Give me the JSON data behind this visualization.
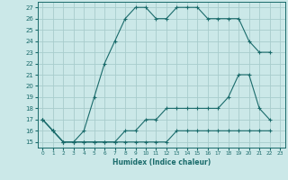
{
  "title": "",
  "xlabel": "Humidex (Indice chaleur)",
  "bg_color": "#cbe8e8",
  "grid_color": "#a8cccc",
  "line_color": "#1a6b6b",
  "spine_color": "#1a6b6b",
  "xlim": [
    -0.5,
    23.5
  ],
  "ylim": [
    14.5,
    27.5
  ],
  "yticks": [
    15,
    16,
    17,
    18,
    19,
    20,
    21,
    22,
    23,
    24,
    25,
    26,
    27
  ],
  "xticks": [
    0,
    1,
    2,
    3,
    4,
    5,
    6,
    7,
    8,
    9,
    10,
    11,
    12,
    13,
    14,
    15,
    16,
    17,
    18,
    19,
    20,
    21,
    22,
    23
  ],
  "line1_x": [
    0,
    1,
    2,
    3,
    4,
    5,
    6,
    7,
    8,
    9,
    10,
    11,
    12,
    13,
    14,
    15,
    16,
    17,
    18,
    19,
    20,
    21,
    22
  ],
  "line1_y": [
    17,
    16,
    15,
    15,
    16,
    19,
    22,
    24,
    26,
    27,
    27,
    26,
    26,
    27,
    27,
    27,
    26,
    26,
    26,
    26,
    24,
    23,
    23
  ],
  "line2_x": [
    0,
    1,
    2,
    3,
    4,
    5,
    6,
    7,
    8,
    9,
    10,
    11,
    12,
    13,
    14,
    15,
    16,
    17,
    18,
    19,
    20,
    21,
    22
  ],
  "line2_y": [
    17,
    16,
    15,
    15,
    15,
    15,
    15,
    15,
    16,
    16,
    17,
    17,
    18,
    18,
    18,
    18,
    18,
    18,
    19,
    21,
    21,
    18,
    17
  ],
  "line3_x": [
    0,
    1,
    2,
    3,
    4,
    5,
    6,
    7,
    8,
    9,
    10,
    11,
    12,
    13,
    14,
    15,
    16,
    17,
    18,
    19,
    20,
    21,
    22
  ],
  "line3_y": [
    17,
    16,
    15,
    15,
    15,
    15,
    15,
    15,
    15,
    15,
    15,
    15,
    15,
    16,
    16,
    16,
    16,
    16,
    16,
    16,
    16,
    16,
    16
  ]
}
